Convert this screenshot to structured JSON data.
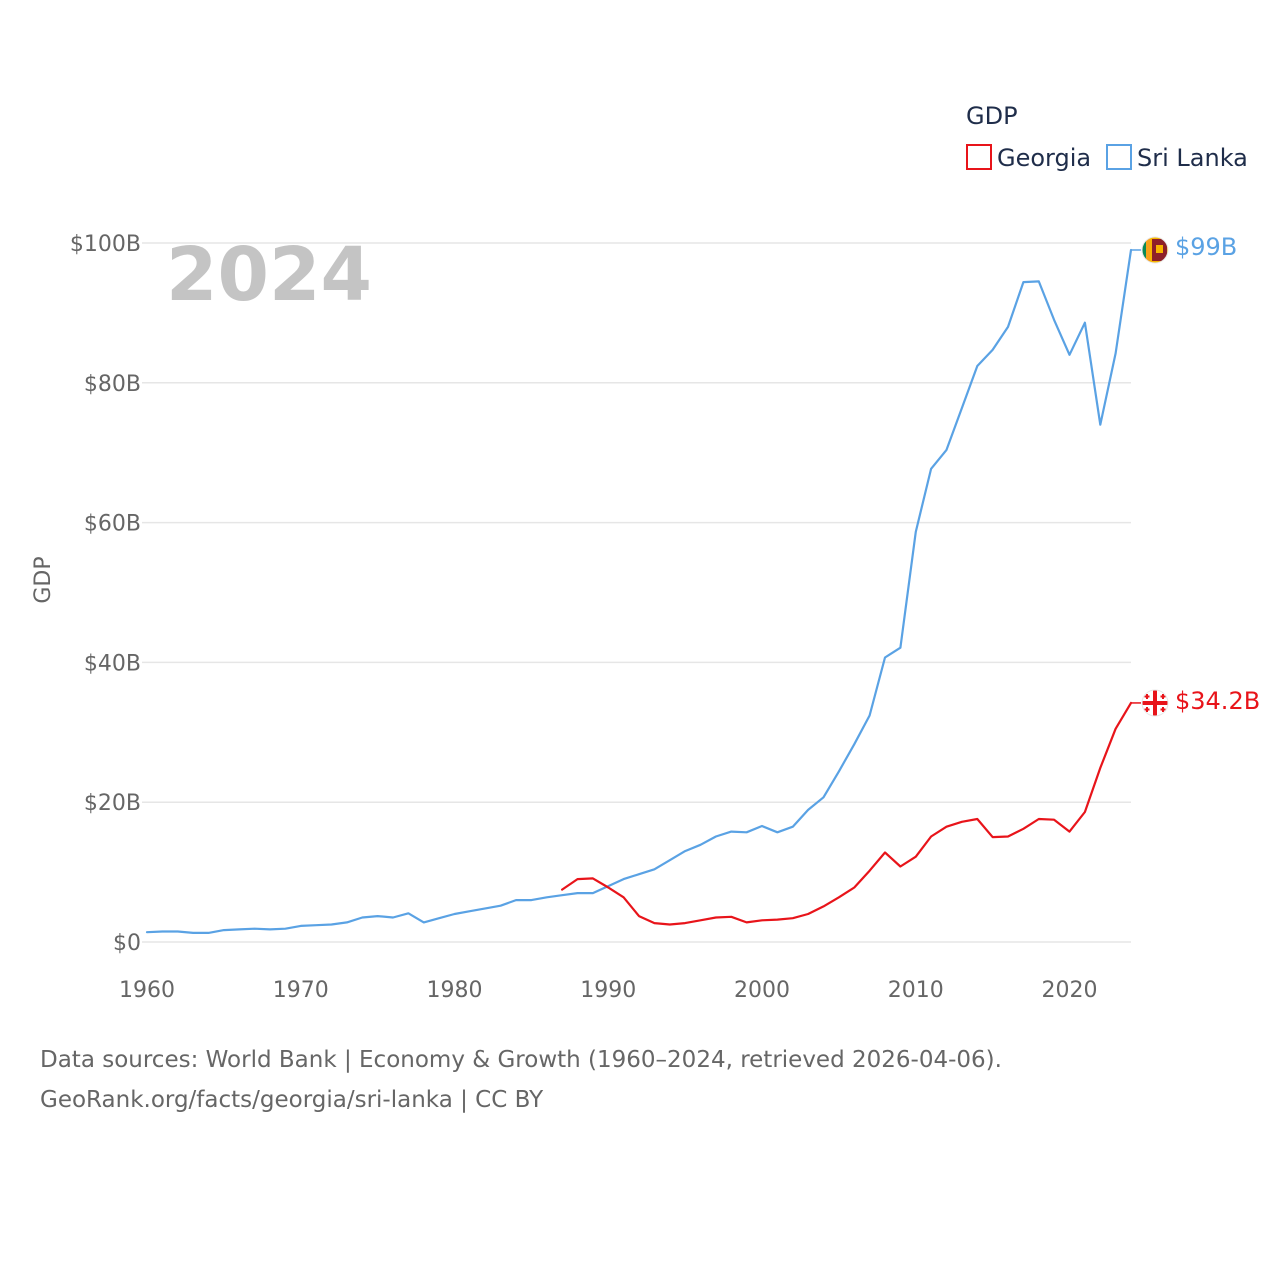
{
  "chart_data": {
    "type": "line",
    "year_label": "2024",
    "ylabel": "GDP",
    "xlabel": "",
    "ylim": [
      0,
      100
    ],
    "xlim": [
      1960,
      2024
    ],
    "x_ticks": [
      1960,
      1970,
      1980,
      1990,
      2000,
      2010,
      2020
    ],
    "x_tick_labels": [
      "1960",
      "1970",
      "1980",
      "1990",
      "2000",
      "2010",
      "2020"
    ],
    "y_ticks": [
      0,
      20,
      40,
      60,
      80,
      100
    ],
    "y_tick_labels": [
      "$0",
      "$20B",
      "$40B",
      "$60B",
      "$80B",
      "$100B"
    ],
    "grid": true,
    "legend": {
      "title": "GDP",
      "placement": "top-right",
      "entries": [
        "Georgia",
        "Sri Lanka"
      ]
    },
    "series": [
      {
        "name": "Georgia",
        "color": "#e8141a",
        "end_label": "$34.2B",
        "flag": "georgia-flag",
        "x": [
          1987,
          1988,
          1989,
          1990,
          1991,
          1992,
          1993,
          1994,
          1995,
          1996,
          1997,
          1998,
          1999,
          2000,
          2001,
          2002,
          2003,
          2004,
          2005,
          2006,
          2007,
          2008,
          2009,
          2010,
          2011,
          2012,
          2013,
          2014,
          2015,
          2016,
          2017,
          2018,
          2019,
          2020,
          2021,
          2022,
          2023,
          2024
        ],
        "values": [
          7.5,
          9.0,
          9.1,
          7.8,
          6.4,
          3.7,
          2.7,
          2.5,
          2.7,
          3.1,
          3.5,
          3.6,
          2.8,
          3.1,
          3.2,
          3.4,
          4.0,
          5.1,
          6.4,
          7.8,
          10.2,
          12.8,
          10.8,
          12.2,
          15.1,
          16.5,
          17.2,
          17.6,
          15.0,
          15.1,
          16.2,
          17.6,
          17.5,
          15.8,
          18.6,
          24.9,
          30.5,
          34.2
        ]
      },
      {
        "name": "Sri Lanka",
        "color": "#5aa2e4",
        "end_label": "$99B",
        "flag": "sri-lanka-flag",
        "x": [
          1960,
          1961,
          1962,
          1963,
          1964,
          1965,
          1966,
          1967,
          1968,
          1969,
          1970,
          1971,
          1972,
          1973,
          1974,
          1975,
          1976,
          1977,
          1978,
          1979,
          1980,
          1981,
          1982,
          1983,
          1984,
          1985,
          1986,
          1987,
          1988,
          1989,
          1990,
          1991,
          1992,
          1993,
          1994,
          1995,
          1996,
          1997,
          1998,
          1999,
          2000,
          2001,
          2002,
          2003,
          2004,
          2005,
          2006,
          2007,
          2008,
          2009,
          2010,
          2011,
          2012,
          2013,
          2014,
          2015,
          2016,
          2017,
          2018,
          2019,
          2020,
          2021,
          2022,
          2023,
          2024
        ],
        "values": [
          1.4,
          1.5,
          1.5,
          1.3,
          1.3,
          1.7,
          1.8,
          1.9,
          1.8,
          1.9,
          2.3,
          2.4,
          2.5,
          2.8,
          3.5,
          3.7,
          3.5,
          4.1,
          2.8,
          3.4,
          4.0,
          4.4,
          4.8,
          5.2,
          6.0,
          6.0,
          6.4,
          6.7,
          7.0,
          7.0,
          8.0,
          9.0,
          9.7,
          10.4,
          11.7,
          13.0,
          13.9,
          15.1,
          15.8,
          15.7,
          16.6,
          15.7,
          16.5,
          18.9,
          20.7,
          24.4,
          28.3,
          32.4,
          40.7,
          42.1,
          58.7,
          67.7,
          70.4,
          76.4,
          82.4,
          84.7,
          88.0,
          94.4,
          94.5,
          89.0,
          84.0,
          88.6,
          74.0,
          84.2,
          99.0
        ]
      }
    ]
  },
  "footer": {
    "line1": "Data sources: World Bank | Economy & Growth (1960–2024, retrieved 2026-04-06).",
    "line2": "GeoRank.org/facts/georgia/sri-lanka | CC BY"
  }
}
